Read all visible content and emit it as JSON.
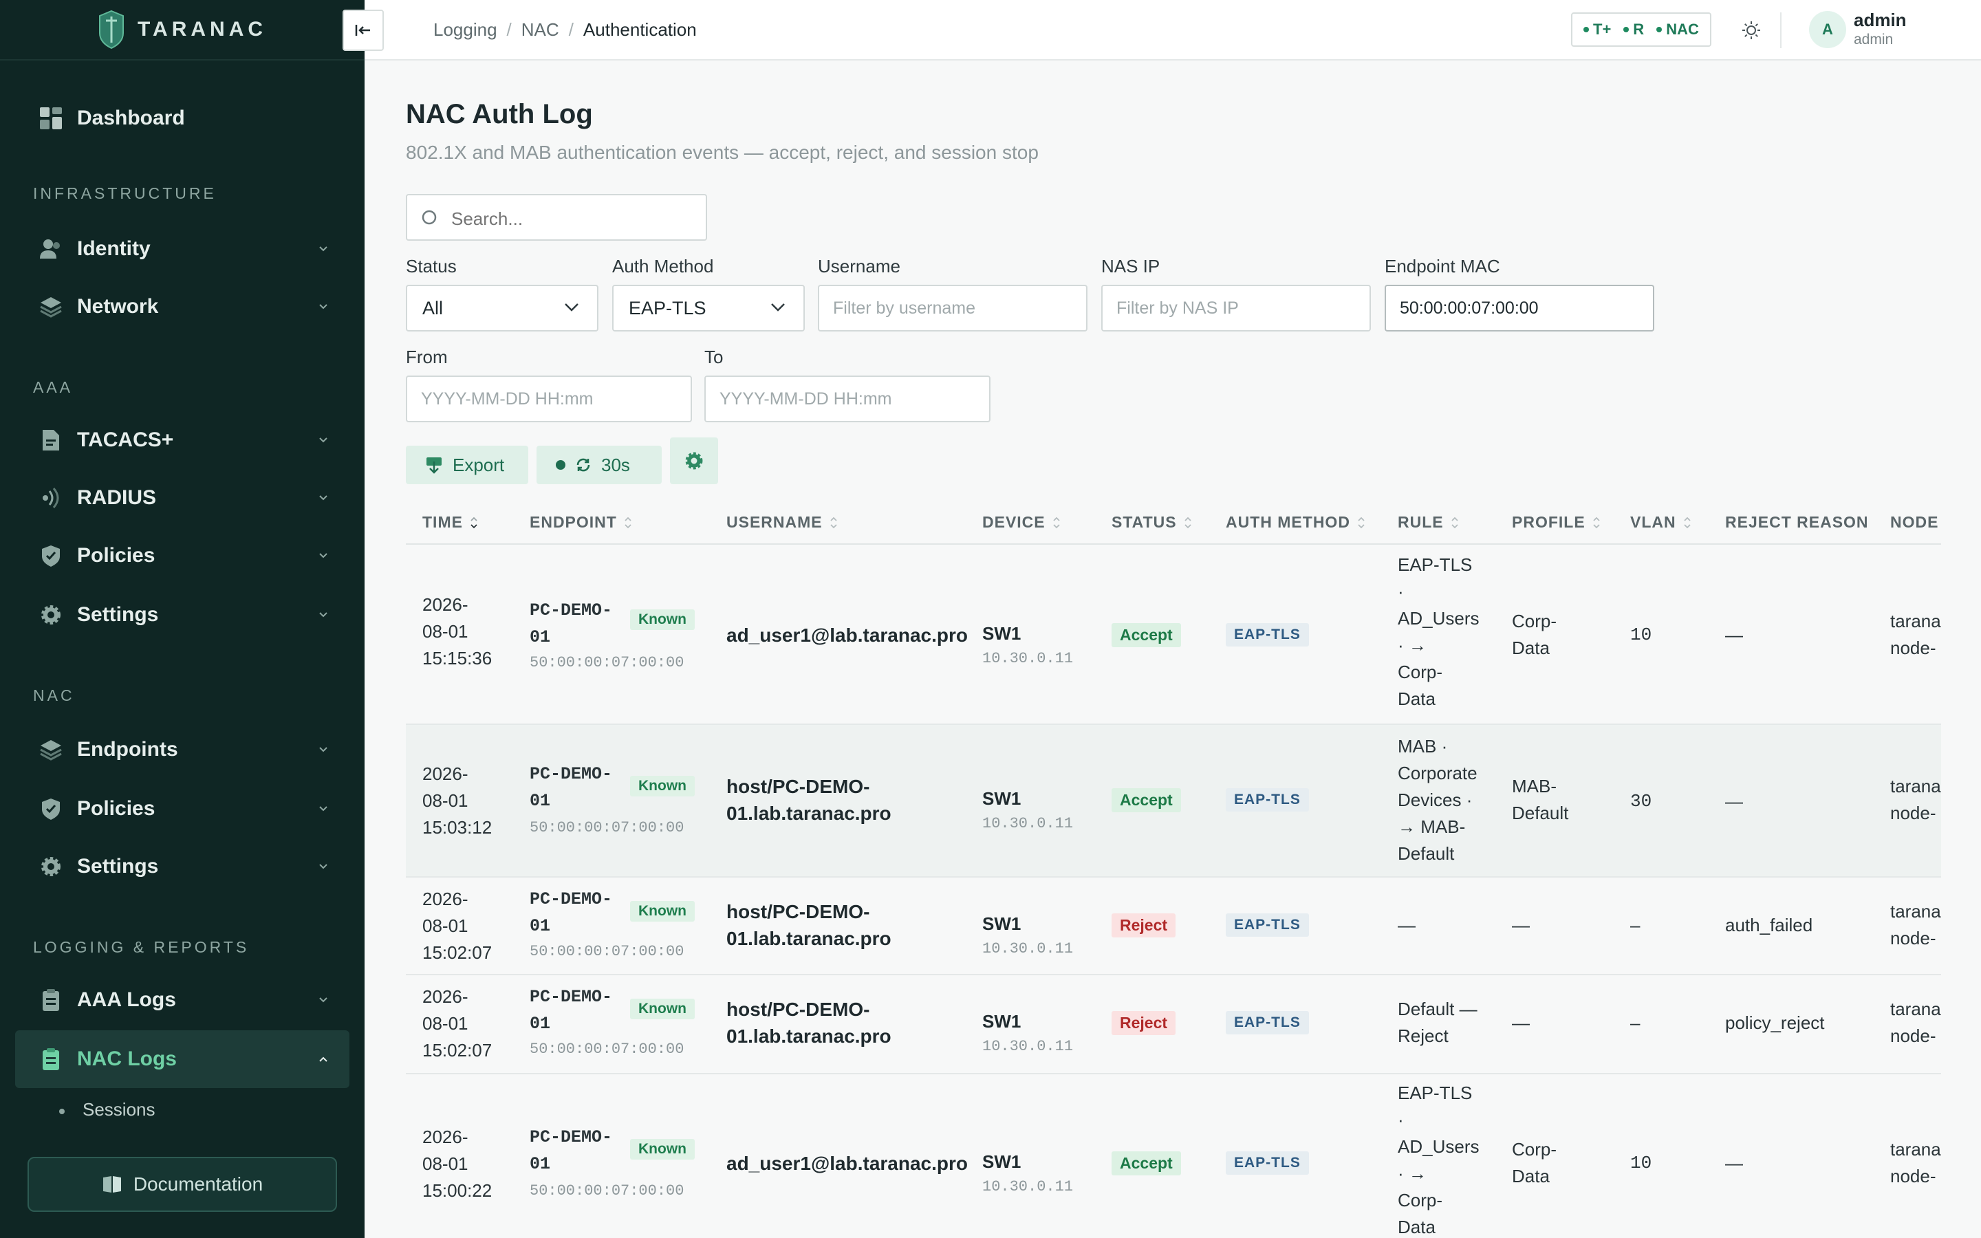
{
  "brand": {
    "name": "TARANAC"
  },
  "sidebar": {
    "dashboard": "Dashboard",
    "sections": {
      "infrastructure": "INFRASTRUCTURE",
      "aaa": "AAA",
      "nac": "NAC",
      "logging": "LOGGING & REPORTS"
    },
    "items": {
      "identity": "Identity",
      "network": "Network",
      "tacacs": "TACACS+",
      "radius": "RADIUS",
      "aaa_policies": "Policies",
      "aaa_settings": "Settings",
      "endpoints": "Endpoints",
      "nac_policies": "Policies",
      "nac_settings": "Settings",
      "aaa_logs": "AAA Logs",
      "nac_logs": "NAC Logs"
    },
    "sub_items": {
      "sessions": "Sessions"
    },
    "documentation": "Documentation"
  },
  "header": {
    "breadcrumb": [
      "Logging",
      "NAC",
      "Authentication"
    ],
    "services": [
      "T+",
      "R",
      "NAC"
    ],
    "user": {
      "initial": "A",
      "name": "admin",
      "role": "admin"
    }
  },
  "page": {
    "title": "NAC Auth Log",
    "subtitle": "802.1X and MAB authentication events — accept, reject, and session stop"
  },
  "filters": {
    "search_placeholder": "Search...",
    "status": {
      "label": "Status",
      "value": "All"
    },
    "auth_method": {
      "label": "Auth Method",
      "value": "EAP-TLS"
    },
    "username": {
      "label": "Username",
      "placeholder": "Filter by username"
    },
    "nas_ip": {
      "label": "NAS IP",
      "placeholder": "Filter by NAS IP"
    },
    "endpoint_mac": {
      "label": "Endpoint MAC",
      "value": "50:00:00:07:00:00"
    },
    "from": {
      "label": "From",
      "placeholder": "YYYY-MM-DD HH:mm"
    },
    "to": {
      "label": "To",
      "placeholder": "YYYY-MM-DD HH:mm"
    }
  },
  "actions": {
    "export": "Export",
    "refresh_interval": "30s"
  },
  "table": {
    "columns": [
      "TIME",
      "ENDPOINT",
      "USERNAME",
      "DEVICE",
      "STATUS",
      "AUTH METHOD",
      "RULE",
      "PROFILE",
      "VLAN",
      "REJECT REASON",
      "NODE"
    ],
    "rows": [
      {
        "time": [
          "2026-",
          "08-01",
          "15:15:36"
        ],
        "endpoint": [
          "PC-DEMO-",
          "01"
        ],
        "known": "Known",
        "mac": "50:00:00:07:00:00",
        "username": [
          "ad_user1@lab.taranac.pro"
        ],
        "device": "SW1",
        "ip": "10.30.0.11",
        "status": "Accept",
        "method": "EAP-TLS",
        "rule": [
          "EAP-TLS",
          "·",
          "AD_Users",
          "· →",
          "Corp-",
          "Data"
        ],
        "profile": [
          "Corp-",
          "Data"
        ],
        "vlan": "10",
        "reason": "—",
        "node": [
          "tarana",
          "node-"
        ]
      },
      {
        "time": [
          "2026-",
          "08-01",
          "15:03:12"
        ],
        "endpoint": [
          "PC-DEMO-",
          "01"
        ],
        "known": "Known",
        "mac": "50:00:00:07:00:00",
        "username": [
          "host/PC-DEMO-",
          "01.lab.taranac.pro"
        ],
        "device": "SW1",
        "ip": "10.30.0.11",
        "status": "Accept",
        "method": "EAP-TLS",
        "rule": [
          "MAB ·",
          "Corporate",
          "Devices ·",
          "→ MAB-",
          "Default"
        ],
        "profile": [
          "MAB-",
          "Default"
        ],
        "vlan": "30",
        "reason": "—",
        "node": [
          "tarana",
          "node-"
        ]
      },
      {
        "time": [
          "2026-",
          "08-01",
          "15:02:07"
        ],
        "endpoint": [
          "PC-DEMO-",
          "01"
        ],
        "known": "Known",
        "mac": "50:00:00:07:00:00",
        "username": [
          "host/PC-DEMO-",
          "01.lab.taranac.pro"
        ],
        "device": "SW1",
        "ip": "10.30.0.11",
        "status": "Reject",
        "method": "EAP-TLS",
        "rule": [
          "—"
        ],
        "profile": [
          "—"
        ],
        "vlan": "–",
        "reason": "auth_failed",
        "node": [
          "tarana",
          "node-"
        ]
      },
      {
        "time": [
          "2026-",
          "08-01",
          "15:02:07"
        ],
        "endpoint": [
          "PC-DEMO-",
          "01"
        ],
        "known": "Known",
        "mac": "50:00:00:07:00:00",
        "username": [
          "host/PC-DEMO-",
          "01.lab.taranac.pro"
        ],
        "device": "SW1",
        "ip": "10.30.0.11",
        "status": "Reject",
        "method": "EAP-TLS",
        "rule": [
          "Default —",
          "Reject"
        ],
        "profile": [
          "—"
        ],
        "vlan": "–",
        "reason": "policy_reject",
        "node": [
          "tarana",
          "node-"
        ]
      },
      {
        "time": [
          "2026-",
          "08-01",
          "15:00:22"
        ],
        "endpoint": [
          "PC-DEMO-",
          "01"
        ],
        "known": "Known",
        "mac": "50:00:00:07:00:00",
        "username": [
          "ad_user1@lab.taranac.pro"
        ],
        "device": "SW1",
        "ip": "10.30.0.11",
        "status": "Accept",
        "method": "EAP-TLS",
        "rule": [
          "EAP-TLS",
          "·",
          "AD_Users",
          "· →",
          "Corp-",
          "Data"
        ],
        "profile": [
          "Corp-",
          "Data"
        ],
        "vlan": "10",
        "reason": "—",
        "node": [
          "tarana",
          "node-"
        ]
      }
    ]
  },
  "colors": {
    "sidebar_bg": "#0f2624",
    "accent": "#1e7a58",
    "active": "#6fd0a5",
    "accept": "#1d7a47",
    "reject": "#b02a2a"
  }
}
